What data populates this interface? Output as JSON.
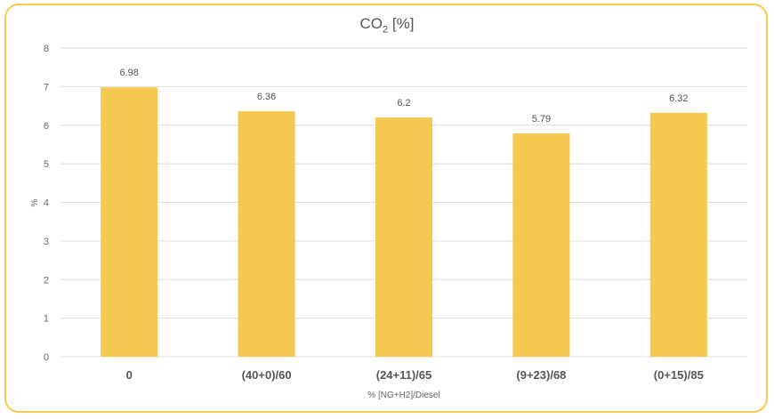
{
  "chart_data": {
    "type": "bar",
    "title": "CO",
    "title_subscript": "2",
    "title_suffix": " [%]",
    "xlabel": "% [NG+H2]/Diesel",
    "ylabel": "%",
    "categories": [
      "0",
      "(40+0)/60",
      "(24+11)/65",
      "(9+23)/68",
      "(0+15)/85"
    ],
    "values": [
      6.98,
      6.36,
      6.2,
      5.79,
      6.32
    ],
    "data_labels": [
      "6.98",
      "6.36",
      "6.2",
      "5.79",
      "6.32"
    ],
    "ylim": [
      0,
      8
    ],
    "yticks": [
      "0",
      "1",
      "2",
      "3",
      "4",
      "5",
      "6",
      "7",
      "8"
    ],
    "grid": true,
    "bar_color": "#f5c84f",
    "frame_color": "#f5ca4f"
  }
}
